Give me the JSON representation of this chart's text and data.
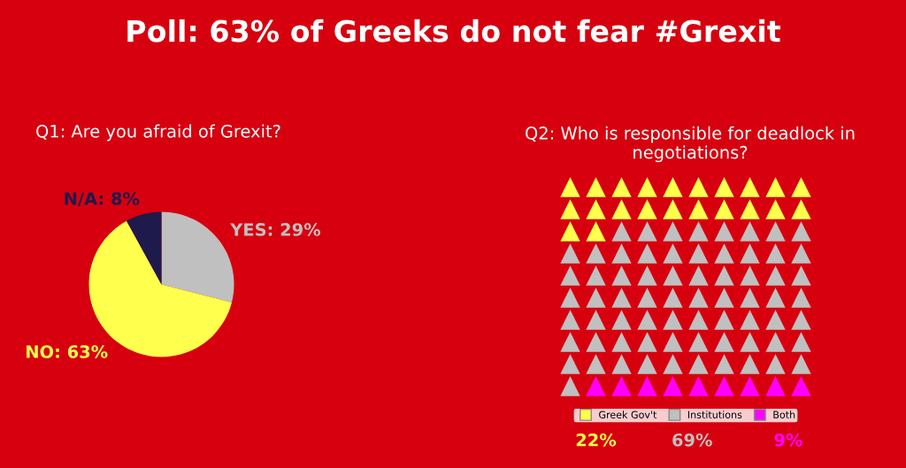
{
  "chart_data": [
    {
      "type": "pie",
      "title": "Poll: 63% of Greeks do not fear #Grexit",
      "subtitle": "Q1: Are you afraid of Grexit?",
      "categories": [
        "YES",
        "NO",
        "N/A"
      ],
      "values": [
        29,
        63,
        8
      ],
      "colors": [
        "#c0c0c0",
        "#ffff4d",
        "#1e1a4c"
      ],
      "value_labels": [
        "29%",
        "63%",
        "8%"
      ]
    },
    {
      "type": "other",
      "title": "Q2: Who is responsible for deadlock in negotiations?",
      "categories": [
        "Greek Gov't",
        "Institutions",
        "Both"
      ],
      "values": [
        22,
        69,
        9
      ],
      "colors": [
        "#ffff4d",
        "#c0c0c0",
        "#ff00ff"
      ],
      "value_labels": [
        "22%",
        "69%",
        "9%"
      ]
    }
  ]
}
